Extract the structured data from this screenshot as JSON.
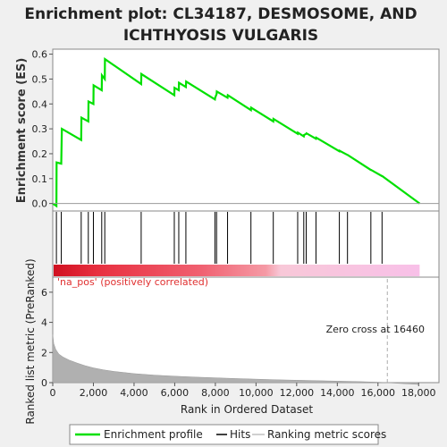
{
  "title_line1": "Enrichment plot: CL34187, DESMOSOME, AND",
  "title_line2": "ICHTHYOSIS VULGARIS",
  "colors": {
    "enrichment": "#00e000",
    "hits": "#000000",
    "metric": "#b0b0b0",
    "pos_label": "#e03030",
    "zero_line": "#aaaaaa"
  },
  "chart_data": [
    {
      "type": "line",
      "title": "",
      "ylabel": "Enrichment score (ES)",
      "xlim": [
        0,
        19000
      ],
      "ylim": [
        -0.03,
        0.62
      ],
      "yticks": [
        0.0,
        0.1,
        0.2,
        0.3,
        0.4,
        0.5,
        0.6
      ],
      "ytick_labels": [
        "0.0",
        "0.1",
        "0.2",
        "0.3",
        "0.4",
        "0.5",
        "0.6"
      ],
      "series": [
        {
          "name": "Enrichment profile",
          "x": [
            0,
            180,
            190,
            420,
            450,
            1400,
            1410,
            1750,
            1760,
            2000,
            2010,
            2410,
            2420,
            2560,
            2570,
            4350,
            4360,
            5980,
            5990,
            6200,
            6210,
            6550,
            6560,
            7980,
            7990,
            8060,
            8070,
            8600,
            8610,
            9750,
            9760,
            10850,
            10860,
            12050,
            12060,
            12350,
            12360,
            12470,
            12480,
            12950,
            12960,
            14100,
            14110,
            14500,
            14510,
            15650,
            15660,
            16200,
            16210,
            18050
          ],
          "y": [
            0.0,
            -0.01,
            0.165,
            0.16,
            0.3,
            0.255,
            0.345,
            0.33,
            0.41,
            0.4,
            0.475,
            0.455,
            0.515,
            0.5,
            0.58,
            0.48,
            0.52,
            0.435,
            0.465,
            0.455,
            0.485,
            0.468,
            0.49,
            0.418,
            0.425,
            0.44,
            0.45,
            0.425,
            0.435,
            0.375,
            0.385,
            0.33,
            0.34,
            0.28,
            0.285,
            0.27,
            0.275,
            0.28,
            0.282,
            0.26,
            0.265,
            0.21,
            0.212,
            0.195,
            0.195,
            0.135,
            0.135,
            0.11,
            0.11,
            0.0
          ]
        }
      ]
    },
    {
      "type": "hits",
      "title": "",
      "positions": [
        180,
        420,
        1400,
        1750,
        2000,
        2410,
        2560,
        4350,
        5980,
        6200,
        6550,
        7980,
        8060,
        8600,
        9750,
        10850,
        12050,
        12350,
        12470,
        12950,
        14100,
        14500,
        15650,
        16200
      ],
      "bar_gradient_note": "red to white to pink heatmap of ranked list"
    },
    {
      "type": "area",
      "title": "",
      "xlabel": "Rank in Ordered Dataset",
      "ylabel": "Ranked list metric (PreRanked)",
      "xlim": [
        0,
        19000
      ],
      "ylim": [
        0,
        7
      ],
      "xticks": [
        0,
        2000,
        4000,
        6000,
        8000,
        10000,
        12000,
        14000,
        16000,
        18000
      ],
      "xtick_labels": [
        "0",
        "2,000",
        "4,000",
        "6,000",
        "8,000",
        "10,000",
        "12,000",
        "14,000",
        "16,000",
        "18,000"
      ],
      "yticks": [
        0,
        2,
        4,
        6
      ],
      "ytick_labels": [
        "0",
        "2",
        "4",
        "6"
      ],
      "x": [
        0,
        50,
        150,
        300,
        500,
        800,
        1200,
        1600,
        2000,
        2500,
        3000,
        4000,
        5000,
        6000,
        7000,
        8000,
        9000,
        10000,
        11000,
        12000,
        13000,
        14000,
        15000,
        16000,
        16460,
        17000,
        18000
      ],
      "values": [
        3.2,
        2.6,
        2.2,
        1.9,
        1.7,
        1.5,
        1.3,
        1.12,
        0.98,
        0.85,
        0.75,
        0.6,
        0.5,
        0.43,
        0.37,
        0.32,
        0.27,
        0.23,
        0.19,
        0.16,
        0.13,
        0.1,
        0.07,
        0.03,
        0.0,
        -0.05,
        -0.12
      ],
      "pos_label": "'na_pos' (positively correlated)",
      "zero_cross_label": "Zero cross at 16460",
      "zero_cross": 16460
    }
  ],
  "legend": {
    "items": [
      {
        "name": "Enrichment profile",
        "kind": "line"
      },
      {
        "name": "Hits",
        "kind": "hit"
      },
      {
        "name": "Ranking metric scores",
        "kind": "metric"
      }
    ]
  }
}
